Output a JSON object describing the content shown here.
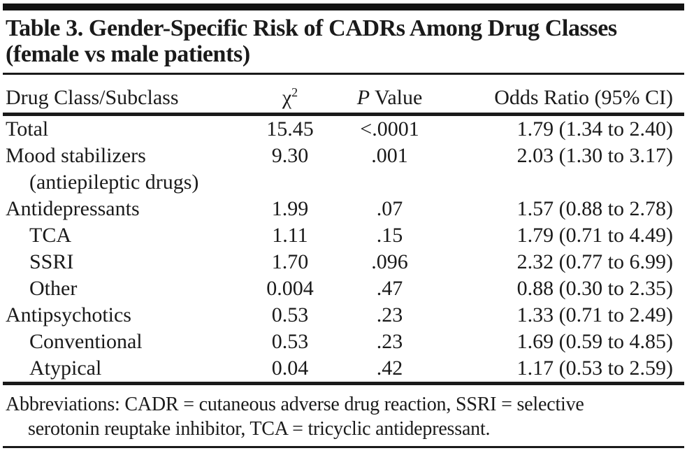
{
  "table": {
    "title_line1": "Table 3. Gender-Specific Risk of CADRs Among Drug Classes",
    "title_line2": "(female vs male patients)",
    "columns": {
      "label": "Drug Class/Subclass",
      "chi_base": "χ",
      "chi_sup": "2",
      "p_italic": "P",
      "p_rest": " Value",
      "odds": "Odds Ratio (95% CI)"
    },
    "rows": [
      {
        "label": "Total",
        "chi2": "15.45",
        "p": "<.0001",
        "or": "1.79 (1.34 to 2.40)"
      },
      {
        "label": "Mood stabilizers",
        "chi2": "9.30",
        "p": ".001",
        "or": "2.03 (1.30 to 3.17)"
      },
      {
        "label": "(antiepileptic drugs)",
        "chi2": "",
        "p": "",
        "or": ""
      },
      {
        "label": "Antidepressants",
        "chi2": "1.99",
        "p": ".07",
        "or": "1.57 (0.88 to 2.78)"
      },
      {
        "label": "TCA",
        "chi2": "1.11",
        "p": ".15",
        "or": "1.79 (0.71 to 4.49)"
      },
      {
        "label": "SSRI",
        "chi2": "1.70",
        "p": ".096",
        "or": "2.32 (0.77 to 6.99)"
      },
      {
        "label": "Other",
        "chi2": "0.004",
        "p": ".47",
        "or": "0.88 (0.30 to 2.35)"
      },
      {
        "label": "Antipsychotics",
        "chi2": "0.53",
        "p": ".23",
        "or": "1.33 (0.71 to 2.49)"
      },
      {
        "label": "Conventional",
        "chi2": "0.53",
        "p": ".23",
        "or": "1.69 (0.59 to 4.85)"
      },
      {
        "label": "Atypical",
        "chi2": "0.04",
        "p": ".42",
        "or": "1.17 (0.53 to 2.59)"
      }
    ],
    "footnote_line1": "Abbreviations: CADR = cutaneous adverse drug reaction, SSRI = selective",
    "footnote_line2": "serotonin reuptake inhibitor, TCA = tricyclic antidepressant.",
    "colors": {
      "text": "#1a1a1a",
      "rule": "#1a1a1a",
      "bar": "#131313",
      "background": "#ffffff"
    }
  },
  "chart_data": {
    "type": "table",
    "title": "Table 3. Gender-Specific Risk of CADRs Among Drug Classes (female vs male patients)",
    "columns": [
      "Drug Class/Subclass",
      "χ2",
      "P Value",
      "Odds Ratio (95% CI)"
    ],
    "rows": [
      [
        "Total",
        "15.45",
        "<.0001",
        "1.79 (1.34 to 2.40)"
      ],
      [
        "Mood stabilizers (antiepileptic drugs)",
        "9.30",
        ".001",
        "2.03 (1.30 to 3.17)"
      ],
      [
        "Antidepressants",
        "1.99",
        ".07",
        "1.57 (0.88 to 2.78)"
      ],
      [
        "TCA",
        "1.11",
        ".15",
        "1.79 (0.71 to 4.49)"
      ],
      [
        "SSRI",
        "1.70",
        ".096",
        "2.32 (0.77 to 6.99)"
      ],
      [
        "Other",
        "0.004",
        ".47",
        "0.88 (0.30 to 2.35)"
      ],
      [
        "Antipsychotics",
        "0.53",
        ".23",
        "1.33 (0.71 to 2.49)"
      ],
      [
        "Conventional",
        "0.53",
        ".23",
        "1.69 (0.59 to 4.85)"
      ],
      [
        "Atypical",
        "0.04",
        ".42",
        "1.17 (0.53 to 2.59)"
      ]
    ],
    "footnote": "Abbreviations: CADR = cutaneous adverse drug reaction, SSRI = selective serotonin reuptake inhibitor, TCA = tricyclic antidepressant."
  }
}
